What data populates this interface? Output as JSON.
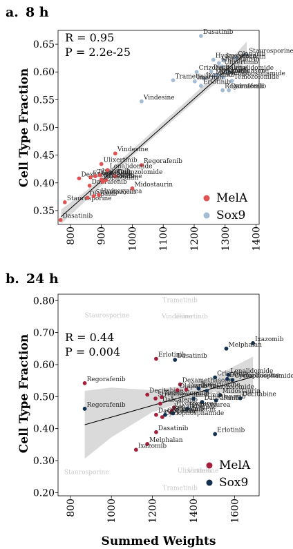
{
  "chart_data": [
    {
      "type": "scatter",
      "panel_label": "a.",
      "title": "8 h",
      "xlabel": "",
      "ylabel": "Cell Type Fraction",
      "xlim": [
        760,
        1410
      ],
      "ylim": [
        0.325,
        0.675
      ],
      "xticks": [
        800,
        900,
        1000,
        1100,
        1200,
        1300,
        1400
      ],
      "yticks": [
        0.35,
        0.4,
        0.45,
        0.5,
        0.55,
        0.6,
        0.65
      ],
      "stats": [
        "R = 0.95",
        "P = 2.2e-25"
      ],
      "legend_placement": "bottom-right",
      "grid": false,
      "regression": {
        "x": [
          770,
          1370
        ],
        "y": [
          0.339,
          0.636
        ]
      },
      "band": {
        "x": [
          770,
          850,
          1000,
          1100,
          1200,
          1300,
          1370
        ],
        "upper": [
          0.352,
          0.385,
          0.46,
          0.51,
          0.56,
          0.612,
          0.655
        ],
        "lower": [
          0.326,
          0.368,
          0.448,
          0.497,
          0.546,
          0.594,
          0.617
        ]
      },
      "series": [
        {
          "name": "MelA",
          "color": "#e05353",
          "points": [
            {
              "label": "Dasatinib",
              "x": 768,
              "y": 0.333
            },
            {
              "label": "Staurosporine",
              "x": 782,
              "y": 0.365
            },
            {
              "label": "Olaparib",
              "x": 855,
              "y": 0.373
            },
            {
              "label": "Streptozocin",
              "x": 875,
              "y": 0.376
            },
            {
              "label": "Hydroxyurea",
              "x": 892,
              "y": 0.378
            },
            {
              "label": "Dabrafenib",
              "x": 862,
              "y": 0.395
            },
            {
              "label": "Midostaurin",
              "x": 1000,
              "y": 0.39
            },
            {
              "label": "Dexamethasone",
              "x": 828,
              "y": 0.408
            },
            {
              "label": "Erlotinib",
              "x": 865,
              "y": 0.41
            },
            {
              "label": "Trametinib",
              "x": 880,
              "y": 0.412
            },
            {
              "label": "Crizotinib",
              "x": 900,
              "y": 0.406
            },
            {
              "label": "Decitabine",
              "x": 915,
              "y": 0.405
            },
            {
              "label": "Temozolomide",
              "x": 945,
              "y": 0.412
            },
            {
              "label": "Ixazomib",
              "x": 895,
              "y": 0.414
            },
            {
              "label": "Melphalan",
              "x": 905,
              "y": 0.402
            },
            {
              "label": "Regorafenib",
              "x": 1030,
              "y": 0.432
            },
            {
              "label": "Lenalidomide",
              "x": 920,
              "y": 0.423
            },
            {
              "label": "Ulixertinib",
              "x": 900,
              "y": 0.434
            },
            {
              "label": "Vindesine",
              "x": 945,
              "y": 0.453
            }
          ]
        },
        {
          "name": "Sox9",
          "color": "#a3bcd4",
          "points": [
            {
              "label": "Dasatinib",
              "x": 1222,
              "y": 0.665
            },
            {
              "label": "Staurosporine",
              "x": 1370,
              "y": 0.631
            },
            {
              "label": "Olaparib",
              "x": 1335,
              "y": 0.625
            },
            {
              "label": "Hydroxyurea",
              "x": 1262,
              "y": 0.622
            },
            {
              "label": "Streptozocin",
              "x": 1295,
              "y": 0.621
            },
            {
              "label": "Midostaurin",
              "x": 1280,
              "y": 0.616
            },
            {
              "label": "Ulixertinib",
              "x": 1290,
              "y": 0.61
            },
            {
              "label": "Crizotinib",
              "x": 1208,
              "y": 0.6
            },
            {
              "label": "Decitabine",
              "x": 1255,
              "y": 0.601
            },
            {
              "label": "Lenalidomide",
              "x": 1312,
              "y": 0.6
            },
            {
              "label": "Dexamethasone",
              "x": 1272,
              "y": 0.595
            },
            {
              "label": "Melphalan",
              "x": 1262,
              "y": 0.592
            },
            {
              "label": "Cisplatin",
              "x": 1280,
              "y": 0.594
            },
            {
              "label": "Cyclophosphamide",
              "x": 1295,
              "y": 0.59
            },
            {
              "label": "Ixazomib",
              "x": 1232,
              "y": 0.588
            },
            {
              "label": "Trametinib",
              "x": 1132,
              "y": 0.585
            },
            {
              "label": "Imatinib",
              "x": 1202,
              "y": 0.583
            },
            {
              "label": "Temozolomide",
              "x": 1322,
              "y": 0.584
            },
            {
              "label": "Erlotinib",
              "x": 1222,
              "y": 0.575
            },
            {
              "label": "Regorafenib",
              "x": 1292,
              "y": 0.567
            },
            {
              "label": "Dabrafenib",
              "x": 1312,
              "y": 0.567
            },
            {
              "label": "Vindesine",
              "x": 1030,
              "y": 0.547
            }
          ]
        }
      ]
    },
    {
      "type": "scatter",
      "panel_label": "b.",
      "title": "24 h",
      "xlabel": "Summed Weights",
      "ylabel": "Cell Type Fraction",
      "xlim": [
        740,
        1720
      ],
      "ylim": [
        0.19,
        0.82
      ],
      "xticks": [
        800,
        1000,
        1200,
        1400,
        1600
      ],
      "yticks": [
        0.2,
        0.3,
        0.4,
        0.5,
        0.6,
        0.7,
        0.8
      ],
      "stats": [
        "R = 0.44",
        "P = 0.004"
      ],
      "legend_placement": "bottom-right",
      "grid": false,
      "regression": {
        "x": [
          870,
          1690
        ],
        "y": [
          0.412,
          0.562
        ]
      },
      "band": {
        "x": [
          870,
          1000,
          1200,
          1350,
          1500,
          1690
        ],
        "upper": [
          0.518,
          0.528,
          0.52,
          0.534,
          0.562,
          0.625
        ],
        "lower": [
          0.306,
          0.373,
          0.452,
          0.483,
          0.515,
          0.5
        ]
      },
      "faded_labels": [
        {
          "label": "Trametinib",
          "x": 1250,
          "y": 0.795
        },
        {
          "label": "Staurosporine",
          "x": 870,
          "y": 0.748
        },
        {
          "label": "Vindesine",
          "x": 1245,
          "y": 0.745
        },
        {
          "label": "Ulixertinib",
          "x": 1305,
          "y": 0.745
        },
        {
          "label": "Staurosporine",
          "x": 770,
          "y": 0.258
        },
        {
          "label": "Ulixertinib",
          "x": 1322,
          "y": 0.262
        },
        {
          "label": "Vindesine",
          "x": 1372,
          "y": 0.262
        },
        {
          "label": "Trametinib",
          "x": 1250,
          "y": 0.208
        }
      ],
      "series": [
        {
          "name": "MelA",
          "color": "#a3203d",
          "points": [
            {
              "label": "Regorafenib",
              "x": 870,
              "y": 0.542
            },
            {
              "label": "Erlotinib",
              "x": 1218,
              "y": 0.618
            },
            {
              "label": "Decitabine",
              "x": 1175,
              "y": 0.506
            },
            {
              "label": "Dexamethasone",
              "x": 1335,
              "y": 0.538
            },
            {
              "label": "Olaparib",
              "x": 1322,
              "y": 0.52
            },
            {
              "label": "Cisplatin",
              "x": 1365,
              "y": 0.522
            },
            {
              "label": "Streptozocin",
              "x": 1215,
              "y": 0.494
            },
            {
              "label": "Temozolomide",
              "x": 1245,
              "y": 0.498
            },
            {
              "label": "Dabrafenib",
              "x": 1238,
              "y": 0.478
            },
            {
              "label": "Hydroxyurea",
              "x": 1305,
              "y": 0.466
            },
            {
              "label": "Lenalidomide",
              "x": 1295,
              "y": 0.456
            },
            {
              "label": "Crizotinib",
              "x": 1290,
              "y": 0.45
            },
            {
              "label": "Dacarbazine",
              "x": 1218,
              "y": 0.443
            },
            {
              "label": "Cyclophosphamide",
              "x": 1248,
              "y": 0.436
            },
            {
              "label": "Dasatinib",
              "x": 1218,
              "y": 0.389
            },
            {
              "label": "Melphalan",
              "x": 1175,
              "y": 0.352
            },
            {
              "label": "Ixazomib",
              "x": 1120,
              "y": 0.334
            }
          ]
        },
        {
          "name": "Sox9",
          "color": "#14304f",
          "points": [
            {
              "label": "Ixazomib",
              "x": 1690,
              "y": 0.667
            },
            {
              "label": "Melphalan",
              "x": 1560,
              "y": 0.65
            },
            {
              "label": "Dasatinib",
              "x": 1310,
              "y": 0.615
            },
            {
              "label": "Regorafenib",
              "x": 870,
              "y": 0.462
            },
            {
              "label": "Lenalidomide",
              "x": 1570,
              "y": 0.568
            },
            {
              "label": "Crizotinib",
              "x": 1505,
              "y": 0.56
            },
            {
              "label": "Dexamethasone",
              "x": 1565,
              "y": 0.555
            },
            {
              "label": "Cyclophosphamide",
              "x": 1590,
              "y": 0.552
            },
            {
              "label": "Dacarbazine",
              "x": 1425,
              "y": 0.525
            },
            {
              "label": "Temozolomide",
              "x": 1465,
              "y": 0.518
            },
            {
              "label": "Midostaurin",
              "x": 1530,
              "y": 0.505
            },
            {
              "label": "Decitabine",
              "x": 1628,
              "y": 0.495
            },
            {
              "label": "Olaparib",
              "x": 1510,
              "y": 0.488
            },
            {
              "label": "Imatinib",
              "x": 1400,
              "y": 0.493
            },
            {
              "label": "Dabrafenib",
              "x": 1442,
              "y": 0.483
            },
            {
              "label": "Hydroxyurea",
              "x": 1370,
              "y": 0.462
            },
            {
              "label": "Streptozocin",
              "x": 1300,
              "y": 0.448
            },
            {
              "label": "Cisplatin",
              "x": 1262,
              "y": 0.443
            },
            {
              "label": "Erlotinib",
              "x": 1505,
              "y": 0.383
            }
          ]
        }
      ]
    }
  ]
}
